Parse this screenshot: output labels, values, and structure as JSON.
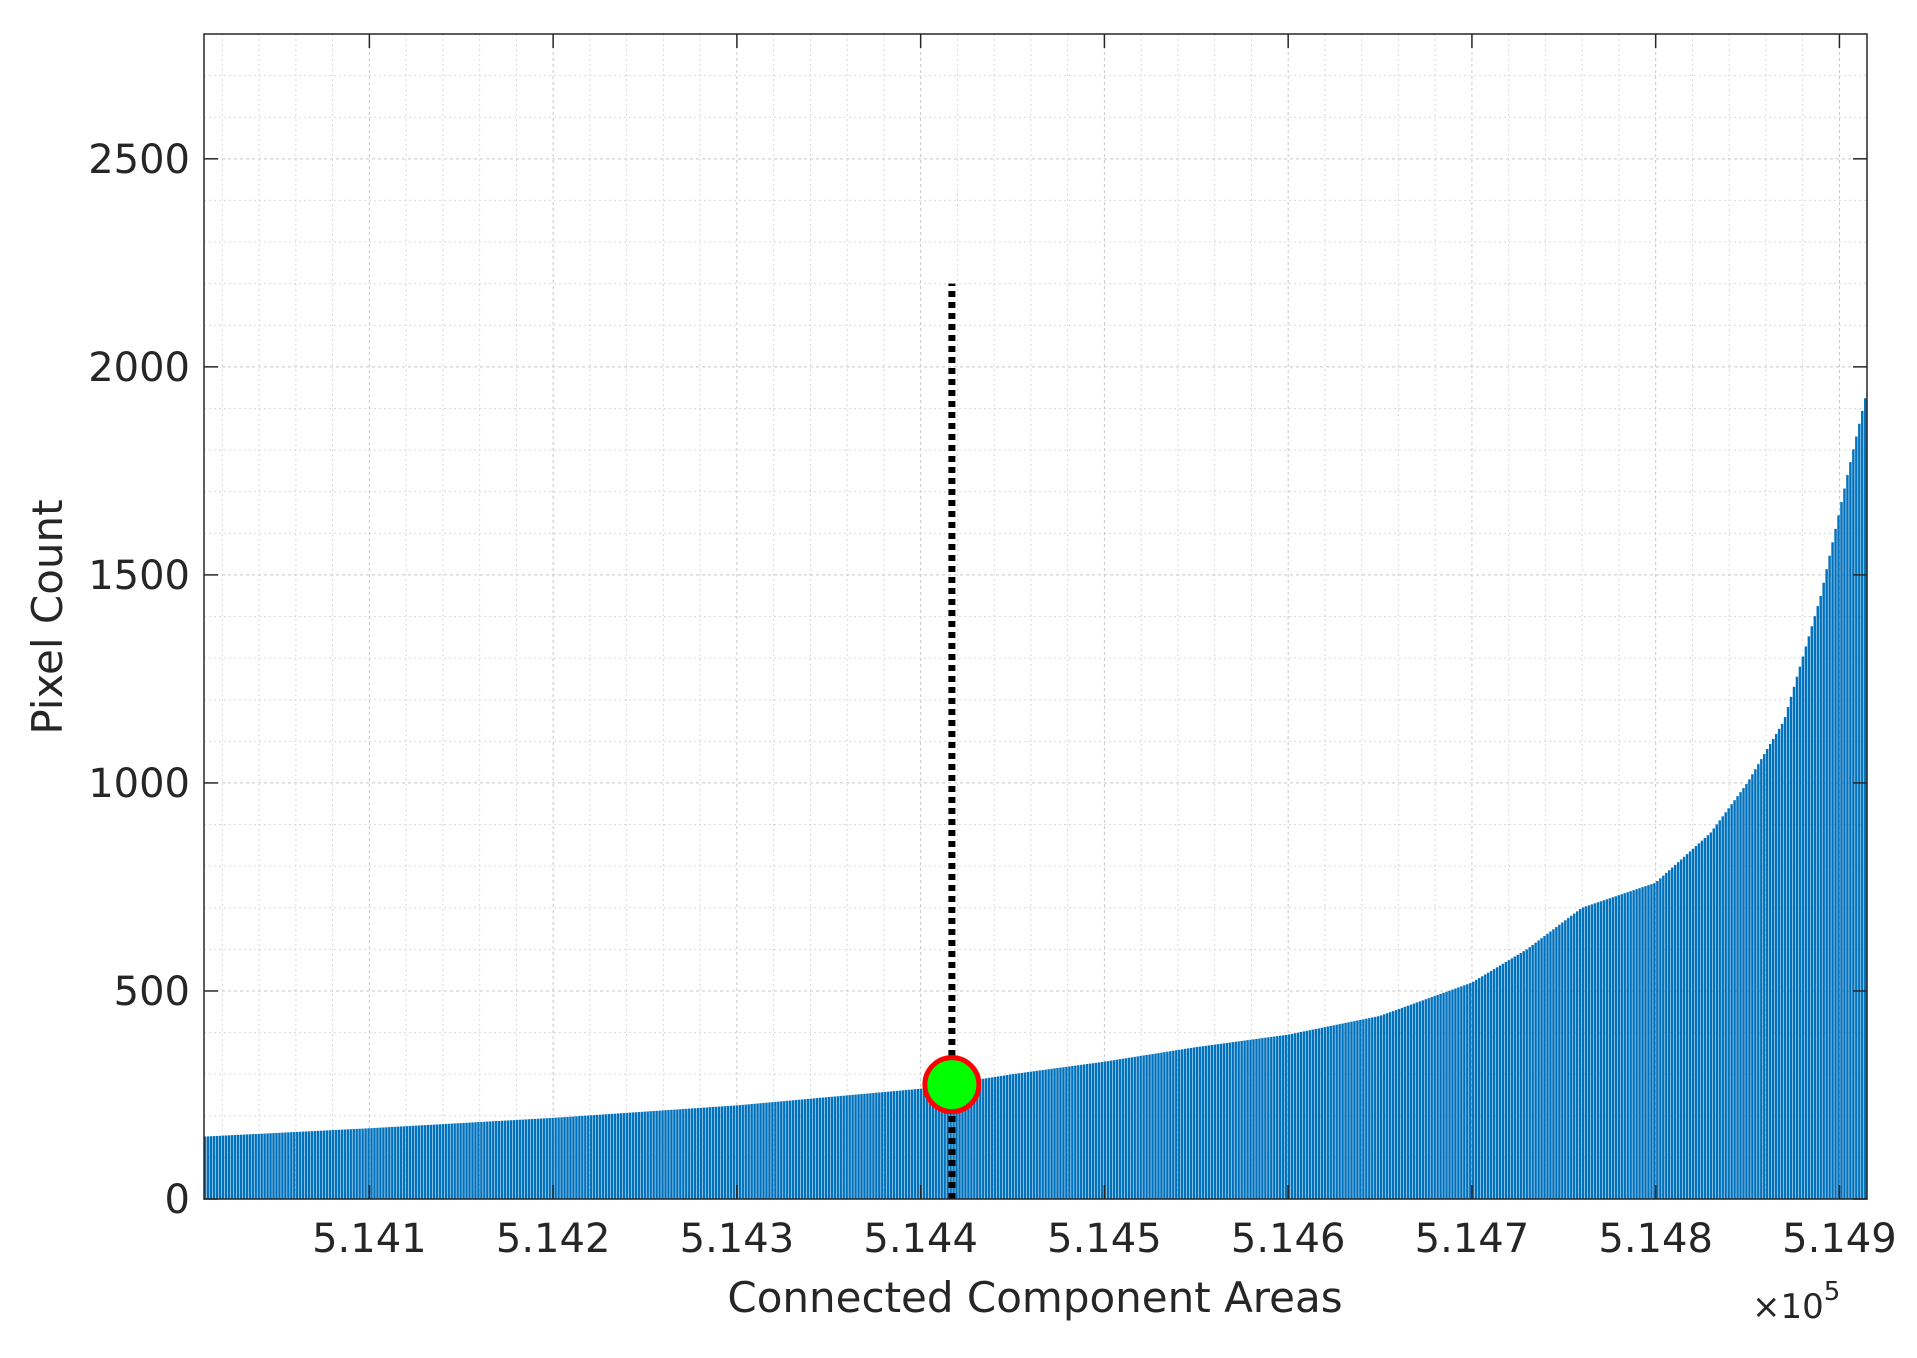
{
  "chart_data": {
    "type": "bar",
    "title": "",
    "xlabel": "Connected Component Areas",
    "ylabel": "Pixel Count",
    "x_exponent_label": "×10",
    "x_exponent_power": "5",
    "xlim": [
      514010,
      514915
    ],
    "ylim": [
      0,
      2800
    ],
    "xticks": [
      514100,
      514200,
      514300,
      514400,
      514500,
      514600,
      514700,
      514800,
      514900
    ],
    "xtick_labels": [
      "5.141",
      "5.142",
      "5.143",
      "5.144",
      "5.145",
      "5.146",
      "5.147",
      "5.148",
      "5.149"
    ],
    "yticks": [
      0,
      500,
      1000,
      1500,
      2000,
      2500
    ],
    "ytick_labels": [
      "0",
      "500",
      "1000",
      "1500",
      "2000",
      "2500"
    ],
    "grid": "major and minor (dotted)",
    "bar_color": "#0072BD",
    "bar_x_range": [
      514010,
      514915
    ],
    "bar_count": 560,
    "bar_profile": [
      {
        "x": 514010,
        "y": 150
      },
      {
        "x": 514100,
        "y": 170
      },
      {
        "x": 514200,
        "y": 195
      },
      {
        "x": 514300,
        "y": 225
      },
      {
        "x": 514400,
        "y": 265
      },
      {
        "x": 514450,
        "y": 300
      },
      {
        "x": 514500,
        "y": 330
      },
      {
        "x": 514550,
        "y": 365
      },
      {
        "x": 514600,
        "y": 395
      },
      {
        "x": 514650,
        "y": 440
      },
      {
        "x": 514700,
        "y": 520
      },
      {
        "x": 514730,
        "y": 600
      },
      {
        "x": 514760,
        "y": 700
      },
      {
        "x": 514800,
        "y": 760
      },
      {
        "x": 514830,
        "y": 880
      },
      {
        "x": 514850,
        "y": 1000
      },
      {
        "x": 514870,
        "y": 1150
      },
      {
        "x": 514890,
        "y": 1450
      },
      {
        "x": 514905,
        "y": 1750
      },
      {
        "x": 514915,
        "y": 1940
      }
    ],
    "threshold_line": {
      "x": 514417,
      "y_from": 0,
      "y_to": 2200,
      "color": "#000000",
      "style": "dotted"
    },
    "marker": {
      "x": 514417,
      "y": 275,
      "fill": "#00ff00",
      "edge": "#ff0000"
    }
  }
}
